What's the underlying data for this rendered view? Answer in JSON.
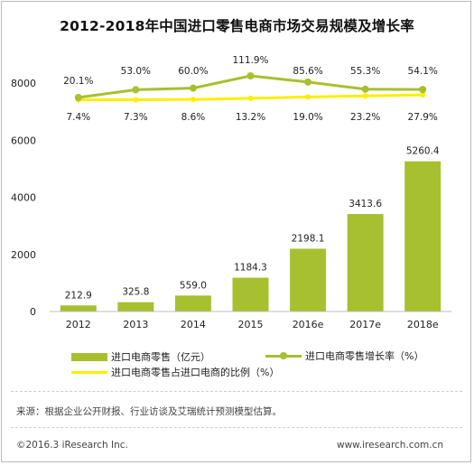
{
  "title": "2012-2018年中国进口零售电商市场交易规模及增长率",
  "chart_data": {
    "type": "bar",
    "categories": [
      "2012",
      "2013",
      "2014",
      "2015",
      "2016e",
      "2017e",
      "2018e"
    ],
    "ylim": [
      0,
      8000
    ],
    "yticks": [
      "0",
      "2000",
      "4000",
      "6000",
      "8000"
    ],
    "grid": false,
    "series": [
      {
        "name": "进口电商零售（亿元）",
        "type": "bar",
        "values": [
          212.9,
          325.8,
          559.0,
          1184.3,
          2198.1,
          3413.6,
          5260.4
        ],
        "labels": [
          "212.9",
          "325.8",
          "559.0",
          "1184.3",
          "2198.1",
          "3413.6",
          "5260.4"
        ],
        "color": "#a7c02f"
      },
      {
        "name": "进口电商零售增长率（%）",
        "type": "line",
        "values": [
          20.1,
          53.0,
          60.0,
          111.9,
          85.6,
          55.3,
          54.1
        ],
        "labels": [
          "20.1%",
          "53.0%",
          "60.0%",
          "111.9%",
          "85.6%",
          "55.3%",
          "54.1%"
        ],
        "color": "#a7c02f"
      },
      {
        "name": "进口电商零售占进口电商的比例（%）",
        "type": "line",
        "values": [
          7.4,
          7.3,
          8.6,
          13.2,
          19.0,
          23.2,
          27.9
        ],
        "labels": [
          "7.4%",
          "7.3%",
          "8.6%",
          "13.2%",
          "19.0%",
          "23.2%",
          "27.9%"
        ],
        "color": "#ffee00"
      }
    ],
    "legend_position": "bottom"
  },
  "legend": {
    "bar_label": "进口电商零售（亿元）",
    "growth_label": "进口电商零售增长率（%）",
    "share_label": "进口电商零售占进口电商的比例（%）"
  },
  "footer": {
    "source": "来源：根据企业公开财报、行业访谈及艾瑞统计预测模型估算。",
    "copyright": "©2016.3 iResearch Inc.",
    "site": "www.iresearch.com.cn"
  }
}
